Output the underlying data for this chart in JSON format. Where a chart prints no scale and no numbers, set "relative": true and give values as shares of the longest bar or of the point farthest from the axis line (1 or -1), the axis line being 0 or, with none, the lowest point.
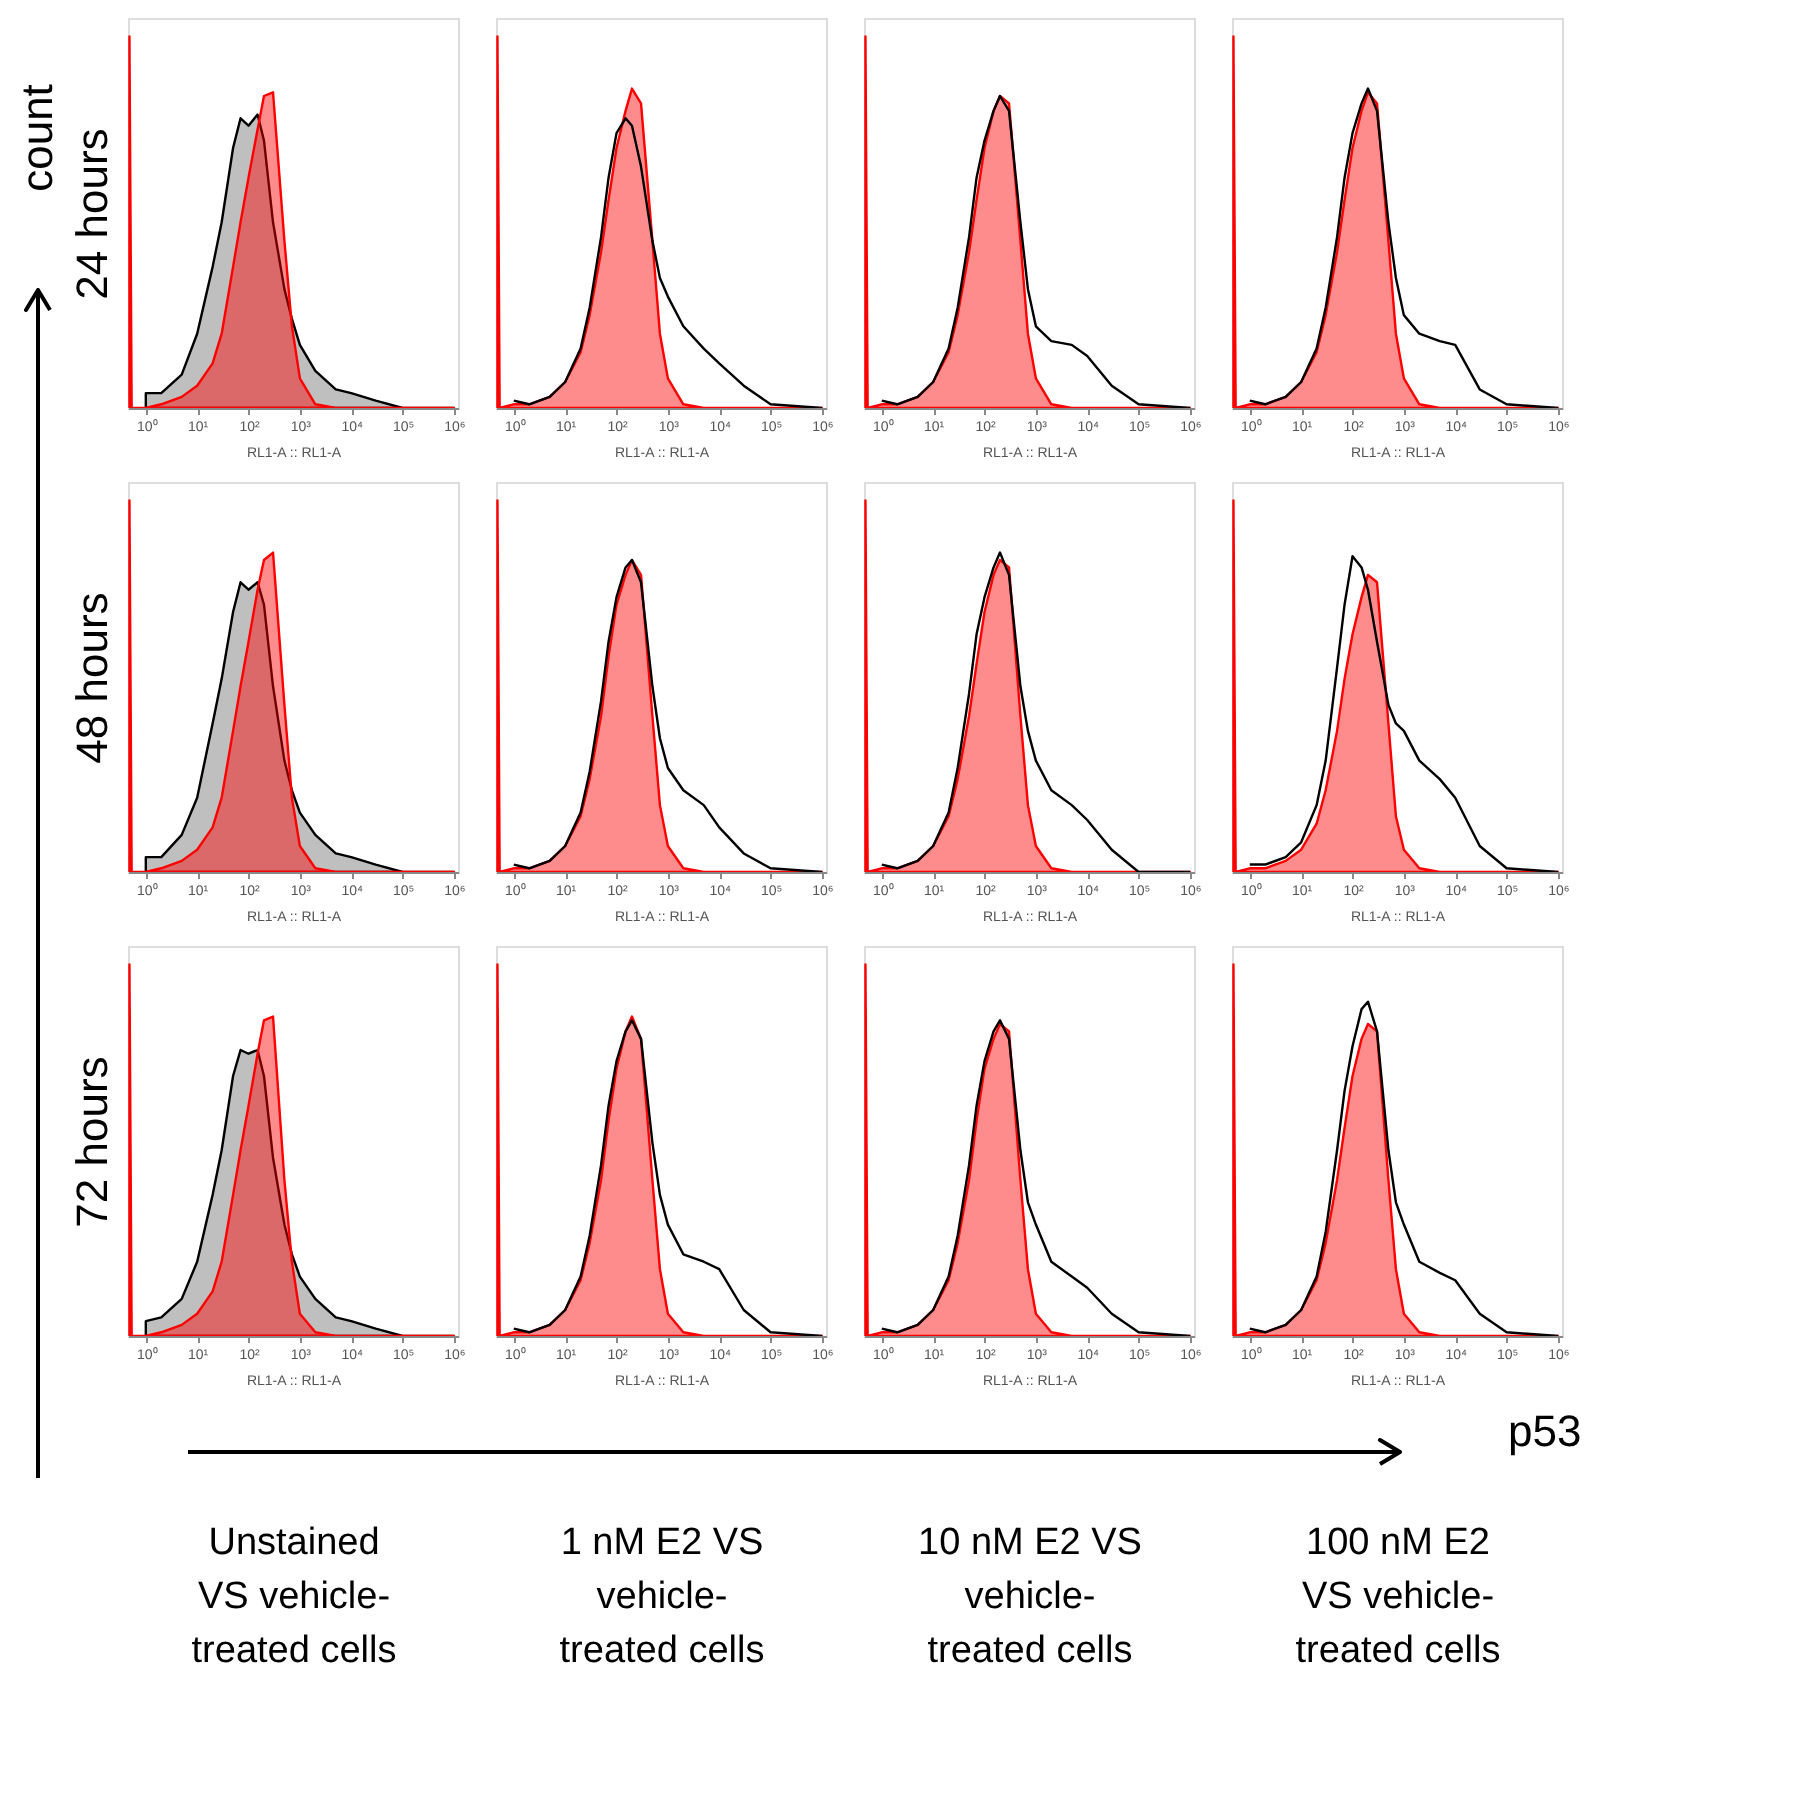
{
  "chart_data": [
    {
      "type": "area",
      "relative": true,
      "log": "x",
      "ylabel": "24 hours",
      "xlabel": "RL1-A :: RL1-A",
      "xlim": [
        0.45,
        1200000
      ],
      "xticks": [
        {
          "value": 1,
          "label": "10⁰"
        },
        {
          "value": 10,
          "label": "10¹"
        },
        {
          "value": 100,
          "label": "10²"
        },
        {
          "value": 1000,
          "label": "10³"
        },
        {
          "value": 10000,
          "label": "10⁴"
        },
        {
          "value": 100000,
          "label": "10⁵"
        },
        {
          "value": 1000000,
          "label": "10⁶"
        }
      ],
      "x": [
        0.48,
        0.53,
        1,
        2,
        5,
        10,
        20,
        30,
        50,
        70,
        100,
        150,
        200,
        300,
        500,
        700,
        1000,
        2000,
        5000,
        10000,
        30000,
        100000,
        1000000
      ],
      "series": [
        {
          "type": "area",
          "color": "#bfbfbf",
          "values": [
            null,
            null,
            0.04,
            0.04,
            0.09,
            0.2,
            0.38,
            0.5,
            0.7,
            0.78,
            0.76,
            0.79,
            0.72,
            0.5,
            0.32,
            0.24,
            0.17,
            0.1,
            0.05,
            0.04,
            0.02,
            0,
            0
          ]
        },
        {
          "type": "area",
          "color": "#ff0000",
          "values": [
            1,
            0,
            0,
            0.01,
            0.03,
            0.06,
            0.12,
            0.2,
            0.38,
            0.5,
            0.62,
            0.75,
            0.84,
            0.85,
            0.45,
            0.22,
            0.08,
            0.01,
            0,
            0,
            0,
            0,
            0
          ]
        }
      ]
    },
    {
      "type": "area",
      "relative": true,
      "log": "x",
      "xlabel": "RL1-A :: RL1-A",
      "xlim": [
        0.45,
        1200000
      ],
      "xticks": [
        {
          "value": 1,
          "label": "10⁰"
        },
        {
          "value": 10,
          "label": "10¹"
        },
        {
          "value": 100,
          "label": "10²"
        },
        {
          "value": 1000,
          "label": "10³"
        },
        {
          "value": 10000,
          "label": "10⁴"
        },
        {
          "value": 100000,
          "label": "10⁵"
        },
        {
          "value": 1000000,
          "label": "10⁶"
        }
      ],
      "x": [
        0.48,
        0.53,
        1,
        2,
        5,
        10,
        20,
        30,
        50,
        70,
        100,
        150,
        200,
        300,
        500,
        700,
        1000,
        2000,
        5000,
        10000,
        30000,
        100000,
        1000000
      ],
      "series": [
        {
          "type": "area",
          "color": "#ff0000",
          "values": [
            1,
            0,
            0.01,
            0.01,
            0.03,
            0.07,
            0.15,
            0.25,
            0.42,
            0.56,
            0.7,
            0.8,
            0.86,
            0.82,
            0.45,
            0.2,
            0.08,
            0.01,
            0,
            0,
            0,
            0,
            0
          ]
        },
        {
          "type": "line",
          "color": "#000000",
          "values": [
            null,
            null,
            0.02,
            0.01,
            0.03,
            0.07,
            0.16,
            0.27,
            0.46,
            0.62,
            0.74,
            0.78,
            0.76,
            0.65,
            0.45,
            0.35,
            0.3,
            0.22,
            0.16,
            0.12,
            0.06,
            0.01,
            0
          ]
        }
      ]
    },
    {
      "type": "area",
      "relative": true,
      "log": "x",
      "xlabel": "RL1-A :: RL1-A",
      "xlim": [
        0.45,
        1200000
      ],
      "xticks": [
        {
          "value": 1,
          "label": "10⁰"
        },
        {
          "value": 10,
          "label": "10¹"
        },
        {
          "value": 100,
          "label": "10²"
        },
        {
          "value": 1000,
          "label": "10³"
        },
        {
          "value": 10000,
          "label": "10⁴"
        },
        {
          "value": 100000,
          "label": "10⁵"
        },
        {
          "value": 1000000,
          "label": "10⁶"
        }
      ],
      "x": [
        0.48,
        0.53,
        1,
        2,
        5,
        10,
        20,
        30,
        50,
        70,
        100,
        150,
        200,
        300,
        500,
        700,
        1000,
        2000,
        5000,
        10000,
        30000,
        100000,
        1000000
      ],
      "series": [
        {
          "type": "area",
          "color": "#ff0000",
          "values": [
            1,
            0,
            0.01,
            0.01,
            0.03,
            0.07,
            0.15,
            0.25,
            0.42,
            0.56,
            0.7,
            0.8,
            0.84,
            0.82,
            0.45,
            0.2,
            0.08,
            0.01,
            0,
            0,
            0,
            0,
            0
          ]
        },
        {
          "type": "line",
          "color": "#000000",
          "values": [
            null,
            null,
            0.02,
            0.01,
            0.03,
            0.07,
            0.16,
            0.27,
            0.46,
            0.62,
            0.72,
            0.8,
            0.84,
            0.8,
            0.5,
            0.32,
            0.22,
            0.18,
            0.17,
            0.14,
            0.06,
            0.01,
            0
          ]
        }
      ]
    },
    {
      "type": "area",
      "relative": true,
      "log": "x",
      "xlabel": "RL1-A :: RL1-A",
      "xlim": [
        0.45,
        1200000
      ],
      "xticks": [
        {
          "value": 1,
          "label": "10⁰"
        },
        {
          "value": 10,
          "label": "10¹"
        },
        {
          "value": 100,
          "label": "10²"
        },
        {
          "value": 1000,
          "label": "10³"
        },
        {
          "value": 10000,
          "label": "10⁴"
        },
        {
          "value": 100000,
          "label": "10⁵"
        },
        {
          "value": 1000000,
          "label": "10⁶"
        }
      ],
      "x": [
        0.48,
        0.53,
        1,
        2,
        5,
        10,
        20,
        30,
        50,
        70,
        100,
        150,
        200,
        300,
        500,
        700,
        1000,
        2000,
        5000,
        10000,
        30000,
        100000,
        1000000
      ],
      "series": [
        {
          "type": "area",
          "color": "#ff0000",
          "values": [
            1,
            0,
            0.01,
            0.01,
            0.03,
            0.07,
            0.15,
            0.25,
            0.42,
            0.56,
            0.7,
            0.8,
            0.85,
            0.82,
            0.45,
            0.2,
            0.08,
            0.01,
            0,
            0,
            0,
            0,
            0
          ]
        },
        {
          "type": "line",
          "color": "#000000",
          "values": [
            null,
            null,
            0.02,
            0.01,
            0.03,
            0.07,
            0.16,
            0.27,
            0.46,
            0.62,
            0.74,
            0.82,
            0.86,
            0.8,
            0.5,
            0.35,
            0.25,
            0.2,
            0.18,
            0.17,
            0.05,
            0.01,
            0
          ]
        }
      ]
    },
    {
      "type": "area",
      "relative": true,
      "log": "x",
      "ylabel": "48 hours",
      "xlabel": "RL1-A :: RL1-A",
      "xlim": [
        0.45,
        1200000
      ],
      "xticks": [
        {
          "value": 1,
          "label": "10⁰"
        },
        {
          "value": 10,
          "label": "10¹"
        },
        {
          "value": 100,
          "label": "10²"
        },
        {
          "value": 1000,
          "label": "10³"
        },
        {
          "value": 10000,
          "label": "10⁴"
        },
        {
          "value": 100000,
          "label": "10⁵"
        },
        {
          "value": 1000000,
          "label": "10⁶"
        }
      ],
      "x": [
        0.48,
        0.53,
        1,
        2,
        5,
        10,
        20,
        30,
        50,
        70,
        100,
        150,
        200,
        300,
        500,
        700,
        1000,
        2000,
        5000,
        10000,
        30000,
        100000,
        1000000
      ],
      "series": [
        {
          "type": "area",
          "color": "#bfbfbf",
          "values": [
            null,
            null,
            0.04,
            0.04,
            0.1,
            0.2,
            0.4,
            0.52,
            0.7,
            0.78,
            0.76,
            0.78,
            0.72,
            0.5,
            0.3,
            0.22,
            0.16,
            0.1,
            0.05,
            0.04,
            0.02,
            0,
            0
          ]
        },
        {
          "type": "area",
          "color": "#ff0000",
          "values": [
            1,
            0,
            0,
            0.01,
            0.03,
            0.06,
            0.12,
            0.2,
            0.38,
            0.5,
            0.62,
            0.76,
            0.84,
            0.86,
            0.45,
            0.2,
            0.07,
            0.01,
            0,
            0,
            0,
            0,
            0
          ]
        }
      ]
    },
    {
      "type": "area",
      "relative": true,
      "log": "x",
      "xlabel": "RL1-A :: RL1-A",
      "xlim": [
        0.45,
        1200000
      ],
      "xticks": [
        {
          "value": 1,
          "label": "10⁰"
        },
        {
          "value": 10,
          "label": "10¹"
        },
        {
          "value": 100,
          "label": "10²"
        },
        {
          "value": 1000,
          "label": "10³"
        },
        {
          "value": 10000,
          "label": "10⁴"
        },
        {
          "value": 100000,
          "label": "10⁵"
        },
        {
          "value": 1000000,
          "label": "10⁶"
        }
      ],
      "x": [
        0.48,
        0.53,
        1,
        2,
        5,
        10,
        20,
        30,
        50,
        70,
        100,
        150,
        200,
        300,
        500,
        700,
        1000,
        2000,
        5000,
        10000,
        30000,
        100000,
        1000000
      ],
      "series": [
        {
          "type": "area",
          "color": "#ff0000",
          "values": [
            1,
            0,
            0.01,
            0.01,
            0.03,
            0.07,
            0.15,
            0.25,
            0.42,
            0.58,
            0.72,
            0.8,
            0.84,
            0.8,
            0.42,
            0.18,
            0.07,
            0.01,
            0,
            0,
            0,
            0,
            0
          ]
        },
        {
          "type": "line",
          "color": "#000000",
          "values": [
            null,
            null,
            0.02,
            0.01,
            0.03,
            0.07,
            0.16,
            0.27,
            0.46,
            0.62,
            0.74,
            0.82,
            0.84,
            0.78,
            0.5,
            0.36,
            0.28,
            0.22,
            0.18,
            0.12,
            0.05,
            0.01,
            0
          ]
        }
      ]
    },
    {
      "type": "area",
      "relative": true,
      "log": "x",
      "xlabel": "RL1-A :: RL1-A",
      "xlim": [
        0.45,
        1200000
      ],
      "xticks": [
        {
          "value": 1,
          "label": "10⁰"
        },
        {
          "value": 10,
          "label": "10¹"
        },
        {
          "value": 100,
          "label": "10²"
        },
        {
          "value": 1000,
          "label": "10³"
        },
        {
          "value": 10000,
          "label": "10⁴"
        },
        {
          "value": 100000,
          "label": "10⁵"
        },
        {
          "value": 1000000,
          "label": "10⁶"
        }
      ],
      "x": [
        0.48,
        0.53,
        1,
        2,
        5,
        10,
        20,
        30,
        50,
        70,
        100,
        150,
        200,
        300,
        500,
        700,
        1000,
        2000,
        5000,
        10000,
        30000,
        100000,
        1000000
      ],
      "series": [
        {
          "type": "area",
          "color": "#ff0000",
          "values": [
            1,
            0,
            0.01,
            0.01,
            0.03,
            0.07,
            0.15,
            0.25,
            0.42,
            0.56,
            0.7,
            0.8,
            0.84,
            0.82,
            0.42,
            0.18,
            0.07,
            0.01,
            0,
            0,
            0,
            0,
            0
          ]
        },
        {
          "type": "line",
          "color": "#000000",
          "values": [
            null,
            null,
            0.02,
            0.01,
            0.03,
            0.07,
            0.16,
            0.28,
            0.48,
            0.64,
            0.74,
            0.82,
            0.86,
            0.8,
            0.5,
            0.38,
            0.3,
            0.22,
            0.18,
            0.14,
            0.06,
            0,
            0
          ]
        }
      ]
    },
    {
      "type": "area",
      "relative": true,
      "log": "x",
      "xlabel": "RL1-A :: RL1-A",
      "xlim": [
        0.45,
        1200000
      ],
      "xticks": [
        {
          "value": 1,
          "label": "10⁰"
        },
        {
          "value": 10,
          "label": "10¹"
        },
        {
          "value": 100,
          "label": "10²"
        },
        {
          "value": 1000,
          "label": "10³"
        },
        {
          "value": 10000,
          "label": "10⁴"
        },
        {
          "value": 100000,
          "label": "10⁵"
        },
        {
          "value": 1000000,
          "label": "10⁶"
        }
      ],
      "x": [
        0.48,
        0.53,
        1,
        2,
        5,
        10,
        20,
        30,
        50,
        70,
        100,
        150,
        200,
        300,
        500,
        700,
        1000,
        2000,
        5000,
        10000,
        30000,
        100000,
        1000000
      ],
      "series": [
        {
          "type": "area",
          "color": "#ff0000",
          "values": [
            1,
            0,
            0.01,
            0.01,
            0.03,
            0.06,
            0.13,
            0.22,
            0.38,
            0.52,
            0.64,
            0.74,
            0.8,
            0.78,
            0.4,
            0.15,
            0.06,
            0.01,
            0,
            0,
            0,
            0,
            0
          ]
        },
        {
          "type": "line",
          "color": "#000000",
          "values": [
            null,
            null,
            0.02,
            0.02,
            0.04,
            0.08,
            0.18,
            0.3,
            0.55,
            0.72,
            0.85,
            0.82,
            0.76,
            0.62,
            0.45,
            0.4,
            0.38,
            0.3,
            0.25,
            0.2,
            0.07,
            0.01,
            0
          ]
        }
      ]
    },
    {
      "type": "area",
      "relative": true,
      "log": "x",
      "ylabel": "72 hours",
      "xlabel": "RL1-A :: RL1-A",
      "xlim": [
        0.45,
        1200000
      ],
      "xticks": [
        {
          "value": 1,
          "label": "10⁰"
        },
        {
          "value": 10,
          "label": "10¹"
        },
        {
          "value": 100,
          "label": "10²"
        },
        {
          "value": 1000,
          "label": "10³"
        },
        {
          "value": 10000,
          "label": "10⁴"
        },
        {
          "value": 100000,
          "label": "10⁵"
        },
        {
          "value": 1000000,
          "label": "10⁶"
        }
      ],
      "x": [
        0.48,
        0.53,
        1,
        2,
        5,
        10,
        20,
        30,
        50,
        70,
        100,
        150,
        200,
        300,
        500,
        700,
        1000,
        2000,
        5000,
        10000,
        30000,
        100000,
        1000000
      ],
      "annotations": [
        "Unstained\nVS vehicle-\ntreated cells"
      ],
      "series": [
        {
          "type": "area",
          "color": "#bfbfbf",
          "values": [
            null,
            null,
            0.04,
            0.05,
            0.1,
            0.2,
            0.38,
            0.5,
            0.7,
            0.77,
            0.76,
            0.77,
            0.7,
            0.48,
            0.3,
            0.22,
            0.16,
            0.1,
            0.05,
            0.04,
            0.02,
            0,
            0
          ]
        },
        {
          "type": "area",
          "color": "#ff0000",
          "values": [
            1,
            0,
            0,
            0.01,
            0.03,
            0.06,
            0.12,
            0.2,
            0.38,
            0.5,
            0.62,
            0.76,
            0.85,
            0.86,
            0.42,
            0.2,
            0.06,
            0.01,
            0,
            0,
            0,
            0,
            0
          ]
        }
      ]
    },
    {
      "type": "area",
      "relative": true,
      "log": "x",
      "xlabel": "RL1-A :: RL1-A",
      "xlim": [
        0.45,
        1200000
      ],
      "xticks": [
        {
          "value": 1,
          "label": "10⁰"
        },
        {
          "value": 10,
          "label": "10¹"
        },
        {
          "value": 100,
          "label": "10²"
        },
        {
          "value": 1000,
          "label": "10³"
        },
        {
          "value": 10000,
          "label": "10⁴"
        },
        {
          "value": 100000,
          "label": "10⁵"
        },
        {
          "value": 1000000,
          "label": "10⁶"
        }
      ],
      "x": [
        0.48,
        0.53,
        1,
        2,
        5,
        10,
        20,
        30,
        50,
        70,
        100,
        150,
        200,
        300,
        500,
        700,
        1000,
        2000,
        5000,
        10000,
        30000,
        100000,
        1000000
      ],
      "annotations": [
        "1 nM E2 VS\nvehicle-\ntreated cells"
      ],
      "series": [
        {
          "type": "area",
          "color": "#ff0000",
          "values": [
            1,
            0,
            0.01,
            0.01,
            0.03,
            0.07,
            0.15,
            0.25,
            0.42,
            0.58,
            0.72,
            0.82,
            0.86,
            0.8,
            0.42,
            0.18,
            0.06,
            0.01,
            0,
            0,
            0,
            0,
            0
          ]
        },
        {
          "type": "line",
          "color": "#000000",
          "values": [
            null,
            null,
            0.02,
            0.01,
            0.03,
            0.07,
            0.16,
            0.27,
            0.46,
            0.62,
            0.74,
            0.82,
            0.85,
            0.8,
            0.52,
            0.38,
            0.3,
            0.22,
            0.2,
            0.18,
            0.07,
            0.01,
            0
          ]
        }
      ]
    },
    {
      "type": "area",
      "relative": true,
      "log": "x",
      "xlabel": "RL1-A :: RL1-A",
      "xlim": [
        0.45,
        1200000
      ],
      "xticks": [
        {
          "value": 1,
          "label": "10⁰"
        },
        {
          "value": 10,
          "label": "10¹"
        },
        {
          "value": 100,
          "label": "10²"
        },
        {
          "value": 1000,
          "label": "10³"
        },
        {
          "value": 10000,
          "label": "10⁴"
        },
        {
          "value": 100000,
          "label": "10⁵"
        },
        {
          "value": 1000000,
          "label": "10⁶"
        }
      ],
      "x": [
        0.48,
        0.53,
        1,
        2,
        5,
        10,
        20,
        30,
        50,
        70,
        100,
        150,
        200,
        300,
        500,
        700,
        1000,
        2000,
        5000,
        10000,
        30000,
        100000,
        1000000
      ],
      "annotations": [
        "10 nM E2 VS\nvehicle-\ntreated cells"
      ],
      "series": [
        {
          "type": "area",
          "color": "#ff0000",
          "values": [
            1,
            0,
            0.01,
            0.01,
            0.03,
            0.07,
            0.15,
            0.25,
            0.42,
            0.58,
            0.72,
            0.8,
            0.84,
            0.82,
            0.42,
            0.18,
            0.06,
            0.01,
            0,
            0,
            0,
            0,
            0
          ]
        },
        {
          "type": "line",
          "color": "#000000",
          "values": [
            null,
            null,
            0.02,
            0.01,
            0.03,
            0.07,
            0.16,
            0.27,
            0.46,
            0.62,
            0.74,
            0.82,
            0.85,
            0.8,
            0.5,
            0.36,
            0.3,
            0.2,
            0.16,
            0.13,
            0.06,
            0.01,
            0
          ]
        }
      ]
    },
    {
      "type": "area",
      "relative": true,
      "log": "x",
      "xlabel": "RL1-A :: RL1-A",
      "xlim": [
        0.45,
        1200000
      ],
      "xticks": [
        {
          "value": 1,
          "label": "10⁰"
        },
        {
          "value": 10,
          "label": "10¹"
        },
        {
          "value": 100,
          "label": "10²"
        },
        {
          "value": 1000,
          "label": "10³"
        },
        {
          "value": 10000,
          "label": "10⁴"
        },
        {
          "value": 100000,
          "label": "10⁵"
        },
        {
          "value": 1000000,
          "label": "10⁶"
        }
      ],
      "x": [
        0.48,
        0.53,
        1,
        2,
        5,
        10,
        20,
        30,
        50,
        70,
        100,
        150,
        200,
        300,
        500,
        700,
        1000,
        2000,
        5000,
        10000,
        30000,
        100000,
        1000000
      ],
      "annotations": [
        "100 nM E2\nVS vehicle-\ntreated cells"
      ],
      "series": [
        {
          "type": "area",
          "color": "#ff0000",
          "values": [
            1,
            0,
            0.01,
            0.01,
            0.03,
            0.07,
            0.15,
            0.25,
            0.42,
            0.56,
            0.7,
            0.8,
            0.84,
            0.82,
            0.42,
            0.18,
            0.06,
            0.01,
            0,
            0,
            0,
            0,
            0
          ]
        },
        {
          "type": "line",
          "color": "#000000",
          "values": [
            null,
            null,
            0.02,
            0.01,
            0.03,
            0.07,
            0.16,
            0.28,
            0.5,
            0.66,
            0.78,
            0.88,
            0.9,
            0.82,
            0.5,
            0.36,
            0.3,
            0.2,
            0.17,
            0.15,
            0.06,
            0.01,
            0
          ]
        }
      ]
    },
    {
      "type": "other",
      "annotations": [
        "count",
        "p53"
      ]
    }
  ]
}
